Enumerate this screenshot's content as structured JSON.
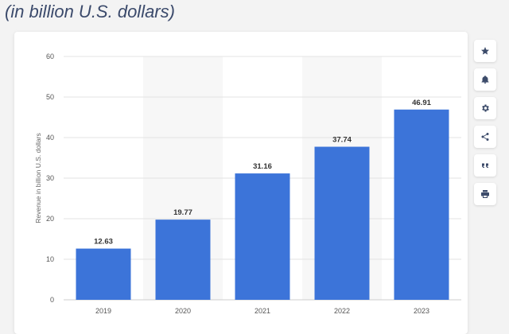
{
  "subtitle": "(in billion U.S. dollars)",
  "toolbar": {
    "items": [
      {
        "icon": "star-icon"
      },
      {
        "icon": "bell-icon"
      },
      {
        "icon": "gear-icon"
      },
      {
        "icon": "share-icon"
      },
      {
        "icon": "quote-icon"
      },
      {
        "icon": "print-icon"
      }
    ]
  },
  "colors": {
    "bar": "#3c74d9",
    "grid": "#e3e3e3",
    "highlight_band": "#f7f7f7"
  },
  "chart_data": {
    "type": "bar",
    "categories": [
      "2019",
      "2020",
      "2021",
      "2022",
      "2023"
    ],
    "values": [
      12.63,
      19.77,
      31.16,
      37.74,
      46.91
    ],
    "value_labels": [
      "12.63",
      "19.77",
      "31.16",
      "37.74",
      "46.91"
    ],
    "ylabel": "Revenue in billion U.S. dollars",
    "ylim": [
      0,
      60
    ],
    "yticks": [
      0,
      10,
      20,
      30,
      40,
      50,
      60
    ],
    "grid": true
  }
}
